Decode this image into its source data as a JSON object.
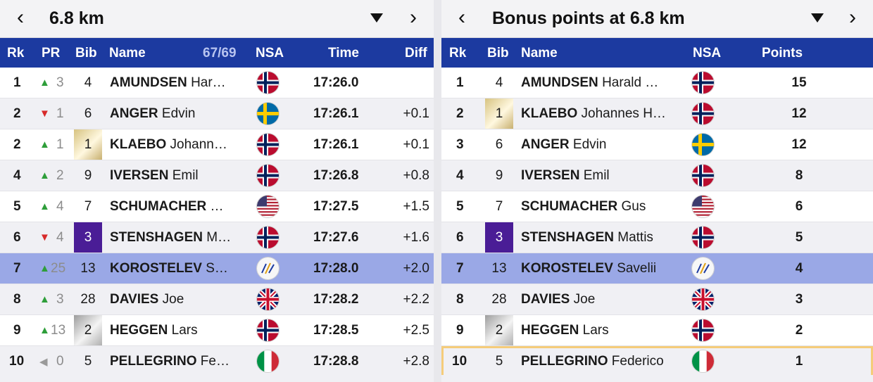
{
  "left": {
    "title": "6.8 km",
    "headers": {
      "rk": "Rk",
      "pr": "PR",
      "bib": "Bib",
      "name": "Name",
      "count": "67/69",
      "nsa": "NSA",
      "time": "Time",
      "diff": "Diff"
    },
    "rows": [
      {
        "rk": "1",
        "pr_dir": "up",
        "pr_arrow": "▲",
        "pr": "3",
        "bib": "4",
        "bib_style": "",
        "last": "AMUNDSEN",
        "first": "Har…",
        "nsa": "NOR",
        "time": "17:26.0",
        "diff": ""
      },
      {
        "rk": "2",
        "pr_dir": "down",
        "pr_arrow": "▼",
        "pr": "1",
        "bib": "6",
        "bib_style": "",
        "last": "ANGER",
        "first": "Edvin",
        "nsa": "SWE",
        "time": "17:26.1",
        "diff": "+0.1"
      },
      {
        "rk": "2",
        "pr_dir": "up",
        "pr_arrow": "▲",
        "pr": "1",
        "bib": "1",
        "bib_style": "gold",
        "last": "KLAEBO",
        "first": "Johann…",
        "nsa": "NOR",
        "time": "17:26.1",
        "diff": "+0.1"
      },
      {
        "rk": "4",
        "pr_dir": "up",
        "pr_arrow": "▲",
        "pr": "2",
        "bib": "9",
        "bib_style": "",
        "last": "IVERSEN",
        "first": "Emil",
        "nsa": "NOR",
        "time": "17:26.8",
        "diff": "+0.8"
      },
      {
        "rk": "5",
        "pr_dir": "up",
        "pr_arrow": "▲",
        "pr": "4",
        "bib": "7",
        "bib_style": "",
        "last": "SCHUMACHER",
        "first": "…",
        "nsa": "USA",
        "time": "17:27.5",
        "diff": "+1.5"
      },
      {
        "rk": "6",
        "pr_dir": "down",
        "pr_arrow": "▼",
        "pr": "4",
        "bib": "3",
        "bib_style": "purple",
        "last": "STENSHAGEN",
        "first": "M…",
        "nsa": "NOR",
        "time": "17:27.6",
        "diff": "+1.6"
      },
      {
        "rk": "7",
        "pr_dir": "up",
        "pr_arrow": "▲",
        "pr": "25",
        "bib": "13",
        "bib_style": "",
        "last": "KOROSTELEV",
        "first": "S…",
        "nsa": "FIS",
        "time": "17:28.0",
        "diff": "+2.0"
      },
      {
        "rk": "8",
        "pr_dir": "up",
        "pr_arrow": "▲",
        "pr": "3",
        "bib": "28",
        "bib_style": "",
        "last": "DAVIES",
        "first": "Joe",
        "nsa": "GBR",
        "time": "17:28.2",
        "diff": "+2.2"
      },
      {
        "rk": "9",
        "pr_dir": "up",
        "pr_arrow": "▲",
        "pr": "13",
        "bib": "2",
        "bib_style": "silver",
        "last": "HEGGEN",
        "first": "Lars",
        "nsa": "NOR",
        "time": "17:28.5",
        "diff": "+2.5"
      },
      {
        "rk": "10",
        "pr_dir": "same",
        "pr_arrow": "◀",
        "pr": "0",
        "bib": "5",
        "bib_style": "",
        "last": "PELLEGRINO",
        "first": "Fe…",
        "nsa": "ITA",
        "time": "17:28.8",
        "diff": "+2.8"
      }
    ]
  },
  "right": {
    "title": "Bonus points at 6.8 km",
    "headers": {
      "rk": "Rk",
      "bib": "Bib",
      "name": "Name",
      "nsa": "NSA",
      "points": "Points"
    },
    "rows": [
      {
        "rk": "1",
        "bib": "4",
        "bib_style": "",
        "last": "AMUNDSEN",
        "first": "Harald …",
        "nsa": "NOR",
        "points": "15"
      },
      {
        "rk": "2",
        "bib": "1",
        "bib_style": "gold",
        "last": "KLAEBO",
        "first": "Johannes H…",
        "nsa": "NOR",
        "points": "12"
      },
      {
        "rk": "3",
        "bib": "6",
        "bib_style": "",
        "last": "ANGER",
        "first": "Edvin",
        "nsa": "SWE",
        "points": "12"
      },
      {
        "rk": "4",
        "bib": "9",
        "bib_style": "",
        "last": "IVERSEN",
        "first": "Emil",
        "nsa": "NOR",
        "points": "8"
      },
      {
        "rk": "5",
        "bib": "7",
        "bib_style": "",
        "last": "SCHUMACHER",
        "first": "Gus",
        "nsa": "USA",
        "points": "6"
      },
      {
        "rk": "6",
        "bib": "3",
        "bib_style": "purple",
        "last": "STENSHAGEN",
        "first": "Mattis",
        "nsa": "NOR",
        "points": "5"
      },
      {
        "rk": "7",
        "bib": "13",
        "bib_style": "",
        "last": "KOROSTELEV",
        "first": "Savelii",
        "nsa": "FIS",
        "points": "4"
      },
      {
        "rk": "8",
        "bib": "28",
        "bib_style": "",
        "last": "DAVIES",
        "first": "Joe",
        "nsa": "GBR",
        "points": "3"
      },
      {
        "rk": "9",
        "bib": "2",
        "bib_style": "silver",
        "last": "HEGGEN",
        "first": "Lars",
        "nsa": "NOR",
        "points": "2"
      },
      {
        "rk": "10",
        "bib": "5",
        "bib_style": "",
        "last": "PELLEGRINO",
        "first": "Federico",
        "nsa": "ITA",
        "points": "1"
      }
    ]
  },
  "icons": {
    "prev": "chevron-left-icon",
    "next": "chevron-right-icon",
    "dropdown": "caret-down-icon"
  },
  "colors": {
    "header_bg": "#1c3aa0",
    "highlight_row": "#9aa8e6",
    "up": "#2e9e3a",
    "down": "#d72a2a",
    "bib_purple": "#4a1d96",
    "boxed_row": "#f5cc7a"
  }
}
